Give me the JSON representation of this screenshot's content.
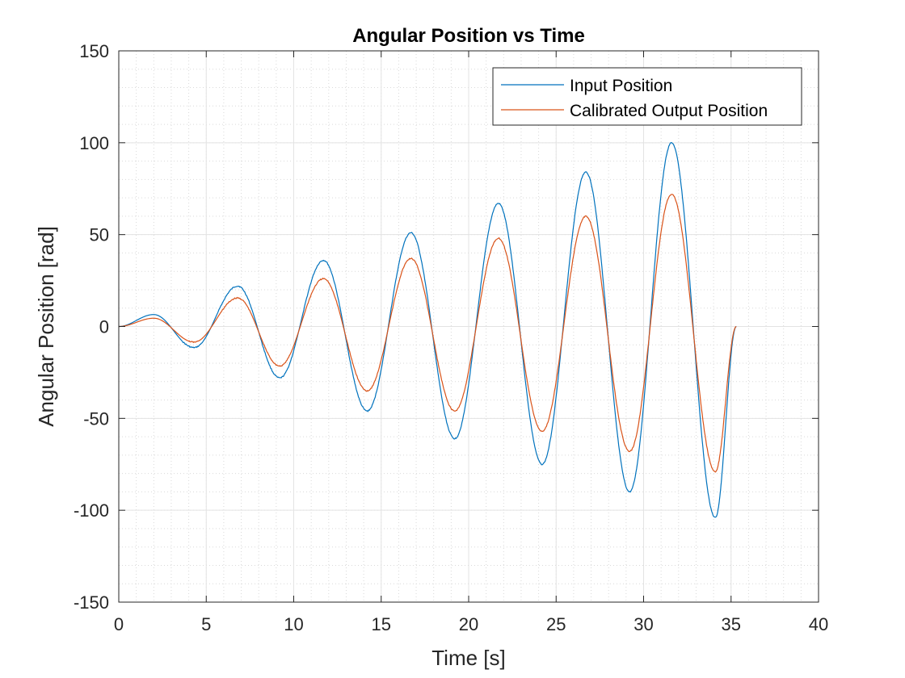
{
  "chart_data": {
    "type": "line",
    "title": "Angular Position vs Time",
    "xlabel": "Time [s]",
    "ylabel": "Angular Position [rad]",
    "xlim": [
      0,
      40
    ],
    "ylim": [
      -150,
      150
    ],
    "xticks": [
      0,
      5,
      10,
      15,
      20,
      25,
      30,
      35,
      40
    ],
    "yticks": [
      -150,
      -100,
      -50,
      0,
      50,
      100,
      150
    ],
    "grid": true,
    "minor_grid": true,
    "legend_position": "top-right",
    "series": [
      {
        "name": "Input Position",
        "color": "#0072BD",
        "points": [
          [
            0,
            0
          ],
          [
            2,
            6.5
          ],
          [
            4.3,
            -11.5
          ],
          [
            6.8,
            22
          ],
          [
            9.2,
            -28
          ],
          [
            11.7,
            36
          ],
          [
            14.2,
            -46
          ],
          [
            16.7,
            51
          ],
          [
            19.2,
            -61
          ],
          [
            21.7,
            67
          ],
          [
            24.2,
            -75
          ],
          [
            26.7,
            84
          ],
          [
            29.2,
            -90
          ],
          [
            31.6,
            100
          ],
          [
            34.1,
            -104
          ],
          [
            35.3,
            0
          ]
        ]
      },
      {
        "name": "Calibrated Output Position",
        "color": "#D95319",
        "points": [
          [
            0,
            0
          ],
          [
            2,
            4.5
          ],
          [
            4.3,
            -8.5
          ],
          [
            6.8,
            15.5
          ],
          [
            9.2,
            -21.5
          ],
          [
            11.7,
            26
          ],
          [
            14.2,
            -35
          ],
          [
            16.7,
            37
          ],
          [
            19.2,
            -46
          ],
          [
            21.7,
            48
          ],
          [
            24.2,
            -57
          ],
          [
            26.7,
            60
          ],
          [
            29.2,
            -68
          ],
          [
            31.6,
            72
          ],
          [
            34.1,
            -79
          ],
          [
            35.3,
            0
          ]
        ]
      }
    ]
  }
}
